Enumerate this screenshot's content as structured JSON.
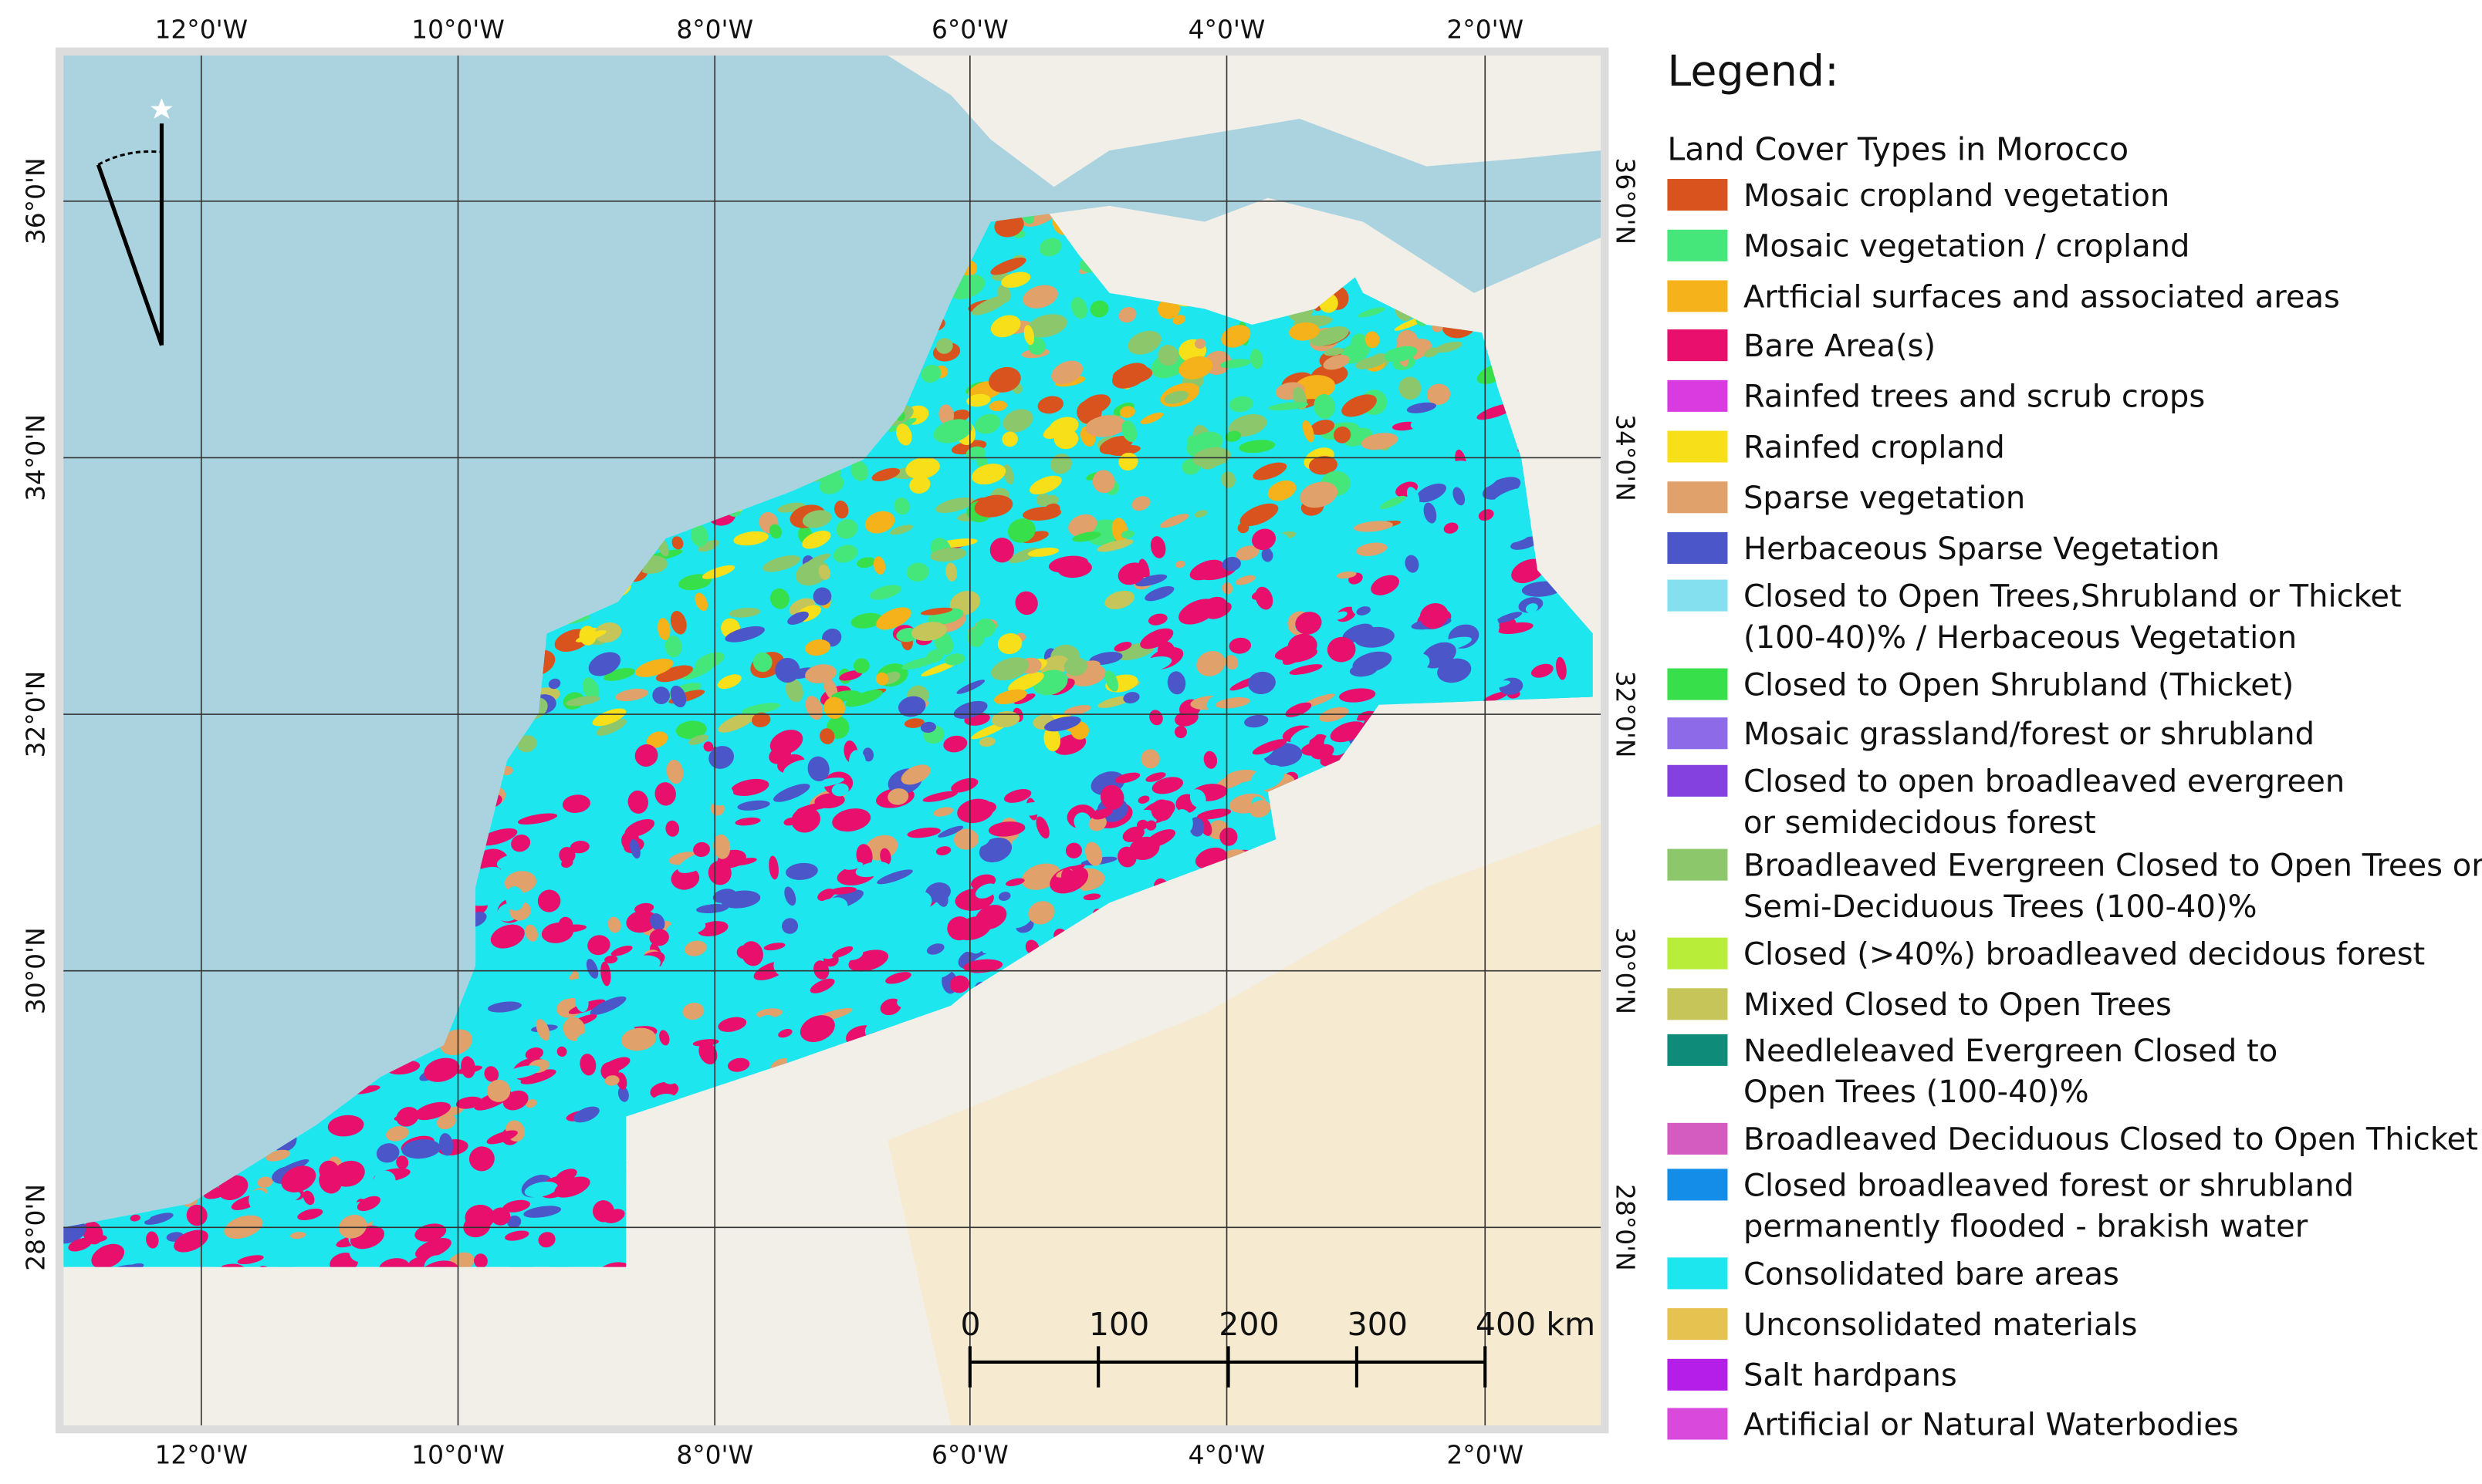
{
  "map": {
    "grid": {
      "lon_labels": [
        "12°0'W",
        "10°0'W",
        "8°0'W",
        "6°0'W",
        "4°0'W",
        "2°0'W"
      ],
      "lat_labels": [
        "36°0'N",
        "34°0'N",
        "32°0'N",
        "30°0'N",
        "28°0'N"
      ]
    },
    "legend": {
      "title": "Legend:",
      "subtitle": "Land Cover Types in Morocco",
      "items": [
        {
          "lines": [
            "Mosaic cropland vegetation"
          ],
          "color": "#d9531e"
        },
        {
          "lines": [
            "Mosaic vegetation / cropland"
          ],
          "color": "#45e67a"
        },
        {
          "lines": [
            "Artficial surfaces and associated areas"
          ],
          "color": "#f5b21b"
        },
        {
          "lines": [
            "Bare Area(s)"
          ],
          "color": "#e8106c"
        },
        {
          "lines": [
            "Rainfed trees and scrub crops"
          ],
          "color": "#d93be0"
        },
        {
          "lines": [
            "Rainfed cropland"
          ],
          "color": "#f7e019"
        },
        {
          "lines": [
            "Sparse vegetation"
          ],
          "color": "#e0a16a"
        },
        {
          "lines": [
            "Herbaceous Sparse Vegetation"
          ],
          "color": "#4b57c9"
        },
        {
          "lines": [
            "Closed to Open Trees,Shrubland or Thicket",
            "(100-40)% / Herbaceous Vegetation"
          ],
          "color": "#84e0ef"
        },
        {
          "lines": [
            "Closed to Open Shrubland (Thicket)"
          ],
          "color": "#37e04a"
        },
        {
          "lines": [
            "Mosaic grassland/forest or shrubland"
          ],
          "color": "#8d6ae8"
        },
        {
          "lines": [
            "Closed to open broadleaved evergreen",
            "or  semidecidous forest"
          ],
          "color": "#8441e0"
        },
        {
          "lines": [
            "Broadleaved Evergreen Closed to Open Trees or",
            "Semi-Deciduous Trees (100-40)%"
          ],
          "color": "#8dc76c"
        },
        {
          "lines": [
            "Closed (>40%) broadleaved decidous forest"
          ],
          "color": "#b8ee3a"
        },
        {
          "lines": [
            "Mixed Closed to Open Trees"
          ],
          "color": "#c5c55a"
        },
        {
          "lines": [
            "Needleleaved Evergreen Closed to",
            "Open Trees (100-40)%"
          ],
          "color": "#0e8c79"
        },
        {
          "lines": [
            "Broadleaved Deciduous Closed to Open Thicket"
          ],
          "color": "#d45cc0"
        },
        {
          "lines": [
            "Closed broadleaved forest or shrubland",
            "permanently flooded - brakish water"
          ],
          "color": "#138de8"
        },
        {
          "lines": [
            "Consolidated bare areas"
          ],
          "color": "#1de6ee"
        },
        {
          "lines": [
            "Unconsolidated materials"
          ],
          "color": "#e6c350"
        },
        {
          "lines": [
            "Salt hardpans"
          ],
          "color": "#b41ee8"
        },
        {
          "lines": [
            "Artificial or Natural Waterbodies"
          ],
          "color": "#d949db"
        }
      ]
    },
    "scale_bar": {
      "labels": [
        "0",
        "100",
        "200",
        "300",
        "400 km"
      ]
    }
  }
}
